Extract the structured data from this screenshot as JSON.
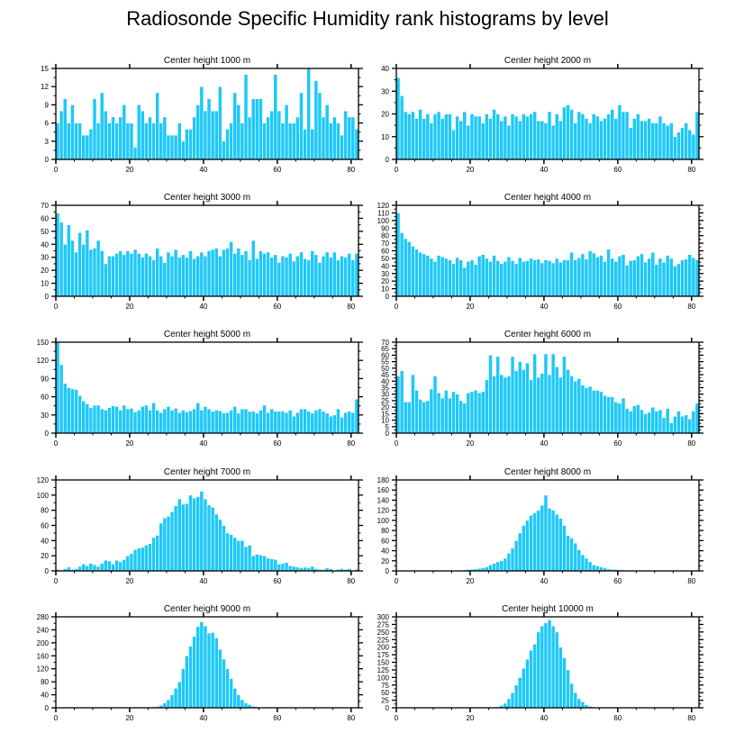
{
  "title": "Radiosonde Specific Humidity rank histograms by level",
  "colors": {
    "bar": "#1ec8f8",
    "bar_edge": "#ffffff",
    "axis": "#000000"
  },
  "chart_data": [
    {
      "type": "bar",
      "title": "Center height 1000 m",
      "xlim": [
        0,
        82
      ],
      "ylim": [
        0,
        15
      ],
      "xticks": [
        0,
        20,
        40,
        60,
        80
      ],
      "yticks": [
        0,
        3,
        6,
        9,
        12,
        15
      ],
      "values": [
        6,
        8,
        10,
        6,
        9,
        6,
        6,
        4,
        4,
        5,
        10,
        6,
        11,
        8,
        6,
        7,
        6,
        7,
        9,
        6,
        6,
        2,
        9,
        8,
        6,
        7,
        6,
        11,
        6,
        7,
        4,
        4,
        4,
        6,
        3,
        5,
        5,
        7,
        9,
        12,
        8,
        10,
        8,
        8,
        12,
        3,
        5,
        6,
        11,
        9,
        6,
        14,
        7,
        10,
        10,
        10,
        6,
        7,
        8,
        14,
        8,
        6,
        9,
        6,
        6,
        7,
        11,
        5,
        15,
        5,
        13,
        11,
        7,
        9,
        6,
        7,
        6,
        4,
        8,
        7,
        7,
        5
      ]
    },
    {
      "type": "bar",
      "title": "Center height 2000 m",
      "xlim": [
        0,
        82
      ],
      "ylim": [
        0,
        40
      ],
      "xticks": [
        0,
        20,
        40,
        60,
        80
      ],
      "yticks": [
        0,
        10,
        20,
        30,
        40
      ],
      "values": [
        36,
        28,
        21,
        20,
        21,
        18,
        22,
        18,
        20,
        16,
        20,
        21,
        18,
        20,
        20,
        13,
        19,
        17,
        21,
        15,
        20,
        19,
        19,
        16,
        20,
        18,
        22,
        20,
        17,
        19,
        15,
        20,
        19,
        17,
        20,
        19,
        20,
        21,
        17,
        17,
        16,
        21,
        15,
        20,
        17,
        23,
        24,
        22,
        16,
        21,
        20,
        18,
        16,
        20,
        19,
        17,
        18,
        20,
        22,
        18,
        24,
        21,
        21,
        14,
        18,
        20,
        17,
        17,
        18,
        16,
        16,
        19,
        16,
        15,
        16,
        10,
        12,
        14,
        16,
        13,
        11,
        21
      ]
    },
    {
      "type": "bar",
      "title": "Center height 3000 m",
      "xlim": [
        0,
        82
      ],
      "ylim": [
        0,
        70
      ],
      "xticks": [
        0,
        20,
        40,
        60,
        80
      ],
      "yticks": [
        0,
        10,
        20,
        30,
        40,
        50,
        60,
        70
      ],
      "values": [
        64,
        57,
        40,
        55,
        43,
        34,
        49,
        40,
        51,
        36,
        37,
        43,
        35,
        25,
        31,
        31,
        33,
        35,
        32,
        35,
        33,
        36,
        33,
        30,
        33,
        31,
        28,
        37,
        31,
        26,
        34,
        31,
        36,
        30,
        32,
        30,
        35,
        29,
        31,
        34,
        31,
        35,
        36,
        37,
        31,
        36,
        37,
        42,
        33,
        37,
        32,
        35,
        28,
        43,
        29,
        35,
        33,
        34,
        30,
        32,
        26,
        31,
        30,
        33,
        27,
        31,
        34,
        29,
        28,
        35,
        32,
        26,
        31,
        34,
        30,
        34,
        28,
        31,
        30,
        33,
        28,
        33
      ]
    },
    {
      "type": "bar",
      "title": "Center height 4000 m",
      "xlim": [
        0,
        82
      ],
      "ylim": [
        0,
        120
      ],
      "xticks": [
        0,
        20,
        40,
        60,
        80
      ],
      "yticks": [
        0,
        10,
        20,
        30,
        40,
        50,
        60,
        70,
        80,
        90,
        100,
        110,
        120
      ],
      "values": [
        110,
        84,
        76,
        72,
        66,
        62,
        58,
        56,
        54,
        50,
        46,
        54,
        52,
        50,
        48,
        43,
        51,
        48,
        38,
        46,
        48,
        42,
        53,
        55,
        50,
        46,
        54,
        47,
        43,
        46,
        52,
        47,
        43,
        51,
        46,
        47,
        50,
        48,
        49,
        44,
        48,
        47,
        44,
        50,
        45,
        48,
        48,
        58,
        48,
        51,
        56,
        49,
        60,
        57,
        52,
        54,
        46,
        62,
        50,
        46,
        53,
        55,
        41,
        47,
        48,
        53,
        56,
        45,
        50,
        58,
        42,
        50,
        45,
        54,
        50,
        40,
        43,
        48,
        49,
        55,
        51,
        48
      ]
    },
    {
      "type": "bar",
      "title": "Center height 5000 m",
      "xlim": [
        0,
        82
      ],
      "ylim": [
        0,
        150
      ],
      "xticks": [
        0,
        20,
        40,
        60,
        80
      ],
      "yticks": [
        0,
        30,
        60,
        90,
        120,
        150
      ],
      "values": [
        150,
        113,
        82,
        75,
        73,
        72,
        62,
        53,
        48,
        42,
        46,
        46,
        40,
        38,
        42,
        45,
        44,
        38,
        46,
        40,
        41,
        35,
        38,
        44,
        46,
        38,
        50,
        38,
        34,
        40,
        44,
        38,
        41,
        34,
        38,
        35,
        37,
        40,
        50,
        38,
        44,
        40,
        36,
        38,
        37,
        33,
        34,
        38,
        44,
        33,
        40,
        40,
        36,
        36,
        33,
        38,
        46,
        34,
        40,
        36,
        36,
        36,
        34,
        38,
        28,
        34,
        40,
        40,
        36,
        33,
        38,
        40,
        36,
        33,
        28,
        30,
        40,
        26,
        34,
        36,
        34,
        56
      ]
    },
    {
      "type": "bar",
      "title": "Center height 6000 m",
      "xlim": [
        0,
        82
      ],
      "ylim": [
        0,
        70
      ],
      "xticks": [
        0,
        20,
        40,
        60,
        80
      ],
      "yticks": [
        0,
        5,
        10,
        15,
        20,
        25,
        30,
        35,
        40,
        45,
        50,
        55,
        60,
        65,
        70
      ],
      "values": [
        44,
        48,
        24,
        24,
        45,
        33,
        26,
        24,
        25,
        34,
        44,
        31,
        27,
        33,
        27,
        32,
        30,
        25,
        23,
        31,
        32,
        33,
        31,
        32,
        41,
        60,
        44,
        59,
        45,
        43,
        44,
        59,
        48,
        55,
        49,
        54,
        41,
        61,
        43,
        46,
        61,
        45,
        61,
        51,
        43,
        59,
        49,
        44,
        40,
        42,
        37,
        35,
        36,
        33,
        33,
        32,
        29,
        28,
        28,
        24,
        23,
        27,
        19,
        17,
        21,
        22,
        18,
        15,
        16,
        20,
        17,
        18,
        12,
        19,
        8,
        13,
        17,
        13,
        14,
        11,
        17,
        23
      ]
    },
    {
      "type": "bar",
      "title": "Center height 7000 m",
      "xlim": [
        0,
        82
      ],
      "ylim": [
        0,
        120
      ],
      "xticks": [
        0,
        20,
        40,
        60,
        80
      ],
      "yticks": [
        0,
        20,
        40,
        60,
        80,
        100,
        120
      ],
      "values": [
        2,
        1,
        3,
        5,
        2,
        3,
        6,
        9,
        7,
        10,
        8,
        6,
        10,
        14,
        13,
        9,
        14,
        12,
        15,
        20,
        23,
        28,
        30,
        31,
        34,
        36,
        44,
        47,
        63,
        70,
        72,
        78,
        86,
        95,
        88,
        89,
        100,
        96,
        98,
        105,
        95,
        87,
        84,
        75,
        68,
        60,
        50,
        48,
        44,
        40,
        40,
        32,
        34,
        20,
        22,
        21,
        20,
        17,
        16,
        15,
        9,
        10,
        11,
        7,
        6,
        5,
        4,
        5,
        4,
        6,
        3,
        2,
        2,
        4,
        3,
        1,
        2,
        3,
        2,
        3,
        1,
        2
      ]
    },
    {
      "type": "bar",
      "title": "Center height 8000 m",
      "xlim": [
        0,
        82
      ],
      "ylim": [
        0,
        180
      ],
      "xticks": [
        0,
        20,
        40,
        60,
        80
      ],
      "yticks": [
        0,
        20,
        40,
        60,
        80,
        100,
        120,
        140,
        160,
        180
      ],
      "values": [
        0,
        0,
        0,
        0,
        0,
        0,
        0,
        0,
        0,
        0,
        0,
        0,
        0,
        0,
        0,
        0,
        0,
        1,
        2,
        3,
        3,
        4,
        5,
        6,
        8,
        12,
        15,
        18,
        20,
        25,
        35,
        45,
        60,
        75,
        90,
        100,
        110,
        115,
        120,
        130,
        150,
        124,
        120,
        112,
        104,
        90,
        70,
        65,
        55,
        42,
        32,
        25,
        18,
        12,
        10,
        8,
        6,
        4,
        3,
        3,
        2,
        2,
        1,
        0,
        0,
        0,
        0,
        0,
        0,
        0,
        0,
        0,
        0,
        0,
        0,
        0,
        0,
        0,
        0,
        0,
        0,
        0
      ]
    },
    {
      "type": "bar",
      "title": "Center height 9000 m",
      "xlim": [
        0,
        82
      ],
      "ylim": [
        0,
        280
      ],
      "xticks": [
        0,
        20,
        40,
        60,
        80
      ],
      "yticks": [
        0,
        40,
        80,
        120,
        160,
        200,
        240,
        280
      ],
      "values": [
        0,
        0,
        0,
        0,
        0,
        0,
        0,
        0,
        0,
        0,
        0,
        0,
        0,
        0,
        0,
        0,
        0,
        0,
        0,
        0,
        0,
        0,
        1,
        1,
        2,
        2,
        3,
        4,
        8,
        15,
        25,
        40,
        60,
        80,
        120,
        160,
        190,
        220,
        250,
        265,
        252,
        230,
        232,
        215,
        180,
        150,
        120,
        90,
        60,
        40,
        25,
        15,
        10,
        5,
        3,
        2,
        1,
        1,
        0,
        0,
        0,
        0,
        0,
        0,
        0,
        0,
        0,
        0,
        0,
        0,
        0,
        0,
        0,
        0,
        0,
        0,
        0,
        0,
        0,
        0,
        0,
        0
      ]
    },
    {
      "type": "bar",
      "title": "Center height 10000 m",
      "xlim": [
        0,
        82
      ],
      "ylim": [
        0,
        300
      ],
      "xticks": [
        0,
        20,
        40,
        60,
        80
      ],
      "yticks": [
        0,
        25,
        50,
        75,
        100,
        125,
        150,
        175,
        200,
        225,
        250,
        275,
        300
      ],
      "values": [
        0,
        0,
        0,
        0,
        0,
        0,
        0,
        0,
        0,
        0,
        0,
        0,
        0,
        0,
        0,
        0,
        0,
        0,
        0,
        0,
        0,
        0,
        0,
        0,
        1,
        1,
        2,
        4,
        8,
        15,
        30,
        50,
        75,
        100,
        130,
        160,
        190,
        210,
        250,
        270,
        280,
        290,
        270,
        250,
        200,
        165,
        125,
        80,
        50,
        30,
        20,
        10,
        5,
        3,
        2,
        1,
        0,
        0,
        0,
        0,
        0,
        0,
        0,
        0,
        0,
        0,
        0,
        0,
        0,
        0,
        0,
        0,
        0,
        0,
        0,
        0,
        0,
        0,
        0,
        0,
        0,
        0
      ]
    }
  ]
}
